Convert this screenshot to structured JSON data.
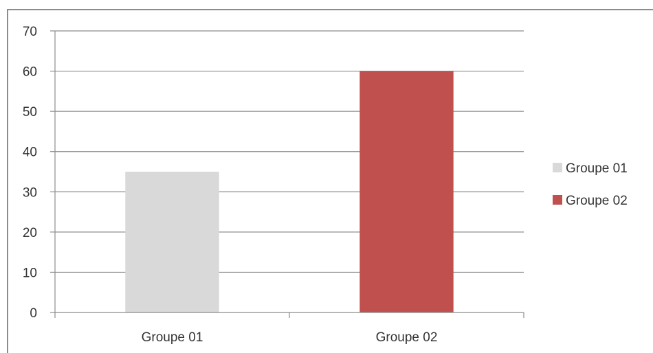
{
  "chart_data": {
    "type": "bar",
    "categories": [
      "Groupe 01",
      "Groupe 02"
    ],
    "values": [
      35,
      60
    ],
    "colors": [
      "#d9d9d9",
      "#c0504d"
    ],
    "ylim": [
      0,
      70
    ],
    "yticks": [
      "0",
      "10",
      "20",
      "30",
      "40",
      "50",
      "60",
      "70"
    ],
    "grid": true,
    "legend": {
      "position": "right",
      "entries": [
        {
          "label": "Groupe 01",
          "color": "#d9d9d9"
        },
        {
          "label": "Groupe 02",
          "color": "#c0504d"
        }
      ]
    }
  }
}
